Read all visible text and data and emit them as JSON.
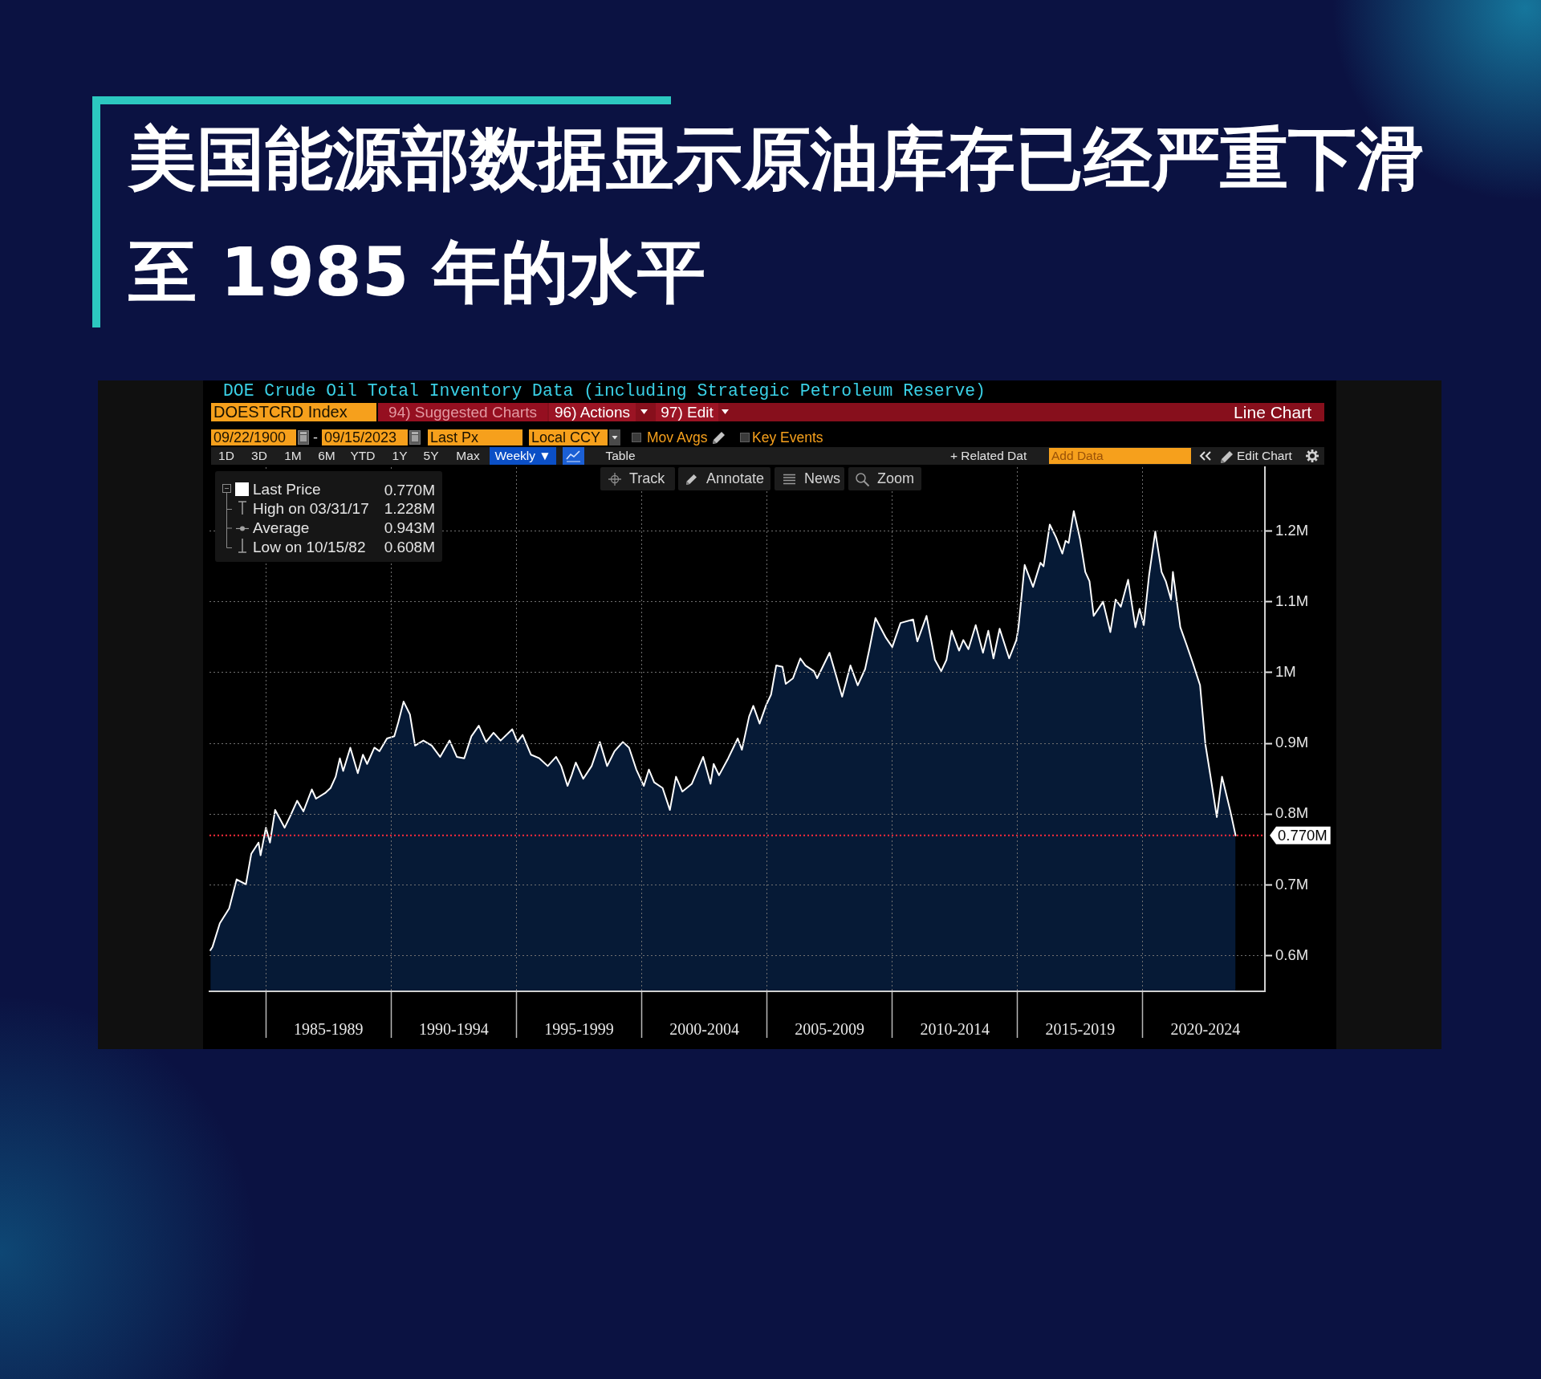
{
  "chart_data": {
    "type": "area",
    "title": "美国能源部数据显示原油库存已经严重下滑至 1985 年的水平",
    "subtitle": "DOE Crude Oil Total Inventory Data (including Strategic Petroleum Reserve)",
    "x": [
      "1982-10-15",
      "1982-11-15",
      "1983-03-01",
      "1983-07-15",
      "1983-11-01",
      "1984-03-15",
      "1984-06-01",
      "1984-09-15",
      "1984-10-15",
      "1985-01-01",
      "1985-03-01",
      "1985-05-15",
      "1985-10-01",
      "1985-12-15",
      "1986-04-01",
      "1986-07-01",
      "1986-11-01",
      "1987-01-01",
      "1987-05-15",
      "1987-08-01",
      "1987-10-15",
      "1987-12-15",
      "1988-02-01",
      "1988-05-15",
      "1988-09-01",
      "1988-11-15",
      "1989-01-15",
      "1989-05-01",
      "1989-07-15",
      "1989-11-01",
      "1990-02-15",
      "1990-04-15",
      "1990-07-01",
      "1990-10-01",
      "1990-12-15",
      "1991-04-15",
      "1991-08-15",
      "1991-12-15",
      "1992-05-01",
      "1992-08-15",
      "1992-12-01",
      "1993-03-15",
      "1993-07-01",
      "1993-10-15",
      "1994-02-01",
      "1994-05-15",
      "1994-11-01",
      "1995-01-15",
      "1995-04-01",
      "1995-08-01",
      "1995-12-01",
      "1996-04-01",
      "1996-08-01",
      "1996-10-15",
      "1997-01-15",
      "1997-03-15",
      "1997-05-15",
      "1997-09-01",
      "1998-01-01",
      "1998-05-01",
      "1998-08-15",
      "1998-12-01",
      "1999-04-01",
      "1999-07-01",
      "1999-10-15",
      "2000-02-01",
      "2000-04-15",
      "2000-07-01",
      "2000-11-01",
      "2001-02-15",
      "2001-05-15",
      "2001-08-15",
      "2002-01-01",
      "2002-06-15",
      "2002-10-01",
      "2002-11-15",
      "2003-02-01",
      "2003-06-15",
      "2003-11-01",
      "2004-01-01",
      "2004-04-15",
      "2004-06-15",
      "2004-09-15",
      "2004-12-15",
      "2005-03-01",
      "2005-05-15",
      "2005-08-15",
      "2005-10-01",
      "2006-01-15",
      "2006-05-01",
      "2006-07-15",
      "2006-11-15",
      "2007-01-01",
      "2007-07-01",
      "2007-10-01",
      "2008-01-01",
      "2008-05-01",
      "2008-08-15",
      "2008-12-01",
      "2009-02-01",
      "2009-05-01",
      "2009-10-01",
      "2010-01-01",
      "2010-05-01",
      "2010-11-01",
      "2011-01-01",
      "2011-05-15",
      "2011-09-15",
      "2011-12-15",
      "2012-03-01",
      "2012-05-15",
      "2012-09-01",
      "2012-11-01",
      "2013-01-15",
      "2013-05-01",
      "2013-08-15",
      "2013-11-01",
      "2014-01-15",
      "2014-04-15",
      "2014-09-01",
      "2014-12-15",
      "2015-01-15",
      "2015-04-15",
      "2015-08-15",
      "2015-12-01",
      "2016-01-15",
      "2016-04-15",
      "2016-07-15",
      "2016-10-15",
      "2016-12-01",
      "2017-01-15",
      "2017-03-31",
      "2017-07-01",
      "2017-09-15",
      "2017-11-15",
      "2018-01-15",
      "2018-06-01",
      "2018-09-15",
      "2018-12-01",
      "2019-02-15",
      "2019-06-01",
      "2019-09-15",
      "2019-11-15",
      "2020-01-15",
      "2020-04-01",
      "2020-07-01",
      "2020-10-01",
      "2020-12-01",
      "2021-02-15",
      "2021-03-15",
      "2021-07-01",
      "2021-10-01",
      "2022-01-01",
      "2022-04-15",
      "2022-07-01",
      "2022-09-15",
      "2022-12-15",
      "2023-03-01",
      "2023-07-01",
      "2023-09-15"
    ],
    "series": [
      {
        "name": "Last Price",
        "color": "#ffffff",
        "values": [
          0.608,
          0.613,
          0.646,
          0.667,
          0.708,
          0.701,
          0.744,
          0.76,
          0.742,
          0.781,
          0.76,
          0.806,
          0.781,
          0.796,
          0.819,
          0.804,
          0.835,
          0.822,
          0.83,
          0.837,
          0.853,
          0.879,
          0.861,
          0.894,
          0.858,
          0.884,
          0.871,
          0.894,
          0.889,
          0.907,
          0.91,
          0.93,
          0.959,
          0.941,
          0.897,
          0.904,
          0.897,
          0.881,
          0.904,
          0.881,
          0.879,
          0.91,
          0.925,
          0.902,
          0.915,
          0.904,
          0.92,
          0.902,
          0.912,
          0.884,
          0.879,
          0.868,
          0.881,
          0.868,
          0.84,
          0.855,
          0.873,
          0.85,
          0.868,
          0.902,
          0.868,
          0.889,
          0.902,
          0.894,
          0.863,
          0.84,
          0.863,
          0.845,
          0.837,
          0.806,
          0.853,
          0.832,
          0.843,
          0.881,
          0.843,
          0.871,
          0.855,
          0.879,
          0.907,
          0.891,
          0.938,
          0.953,
          0.928,
          0.953,
          0.969,
          1.01,
          1.008,
          0.984,
          0.992,
          1.02,
          1.01,
          1.002,
          0.992,
          1.028,
          0.997,
          0.966,
          1.01,
          0.982,
          1.005,
          1.033,
          1.077,
          1.049,
          1.036,
          1.07,
          1.075,
          1.044,
          1.08,
          1.018,
          1.002,
          1.018,
          1.059,
          1.031,
          1.046,
          1.033,
          1.067,
          1.028,
          1.059,
          1.02,
          1.062,
          1.02,
          1.046,
          1.064,
          1.152,
          1.121,
          1.155,
          1.15,
          1.209,
          1.191,
          1.168,
          1.186,
          1.183,
          1.228,
          1.188,
          1.142,
          1.129,
          1.08,
          1.1,
          1.057,
          1.103,
          1.093,
          1.131,
          1.064,
          1.09,
          1.067,
          1.137,
          1.199,
          1.142,
          1.129,
          1.103,
          1.142,
          1.064,
          1.039,
          1.013,
          0.982,
          0.899,
          0.853,
          0.796,
          0.853,
          0.804,
          0.77
        ]
      }
    ],
    "xlim": [
      "1982-10-01",
      "2024-11-15"
    ],
    "xticks": [
      {
        "value": "1985-01-01",
        "label": null
      },
      {
        "value": "1987-07-02",
        "label": "1985-1989"
      },
      {
        "value": "1990-01-01",
        "label": null
      },
      {
        "value": "1992-07-02",
        "label": "1990-1994"
      },
      {
        "value": "1995-01-01",
        "label": null
      },
      {
        "value": "1997-07-02",
        "label": "1995-1999"
      },
      {
        "value": "2000-01-01",
        "label": null
      },
      {
        "value": "2002-07-02",
        "label": "2000-2004"
      },
      {
        "value": "2005-01-01",
        "label": null
      },
      {
        "value": "2007-07-02",
        "label": "2005-2009"
      },
      {
        "value": "2010-01-01",
        "label": null
      },
      {
        "value": "2012-07-02",
        "label": "2010-2014"
      },
      {
        "value": "2015-01-01",
        "label": null
      },
      {
        "value": "2017-07-02",
        "label": "2015-2019"
      },
      {
        "value": "2020-01-01",
        "label": null
      },
      {
        "value": "2022-07-02",
        "label": "2020-2024"
      }
    ],
    "ylim": [
      0.55,
      1.29
    ],
    "yticks": [
      {
        "value": 0.6,
        "label": "0.6M"
      },
      {
        "value": 0.7,
        "label": "0.7M"
      },
      {
        "value": 0.8,
        "label": "0.8M"
      },
      {
        "value": 0.9,
        "label": "0.9M"
      },
      {
        "value": 1,
        "label": "1M"
      },
      {
        "value": 1.1,
        "label": "1.1M"
      },
      {
        "value": 1.2,
        "label": "1.2M"
      }
    ],
    "ref_lines": [
      {
        "axis": "y",
        "value": 0.77,
        "label": "0.770M",
        "color": "#ff2b3b",
        "line_style": "dotted"
      }
    ],
    "grid": true,
    "legend": "top left",
    "annotations": [
      "DOESTCRD Index",
      "94) Suggested Charts",
      "96) Actions",
      "97) Edit",
      "Line Chart",
      "09/22/1900",
      "-",
      "09/15/2023",
      "Last Px",
      "Local CCY",
      "Mov Avgs",
      "Key Events",
      "1D",
      "3D",
      "1M",
      "6M",
      "YTD",
      "1Y",
      "5Y",
      "Max",
      "Weekly ▼",
      "Table",
      "+ Related Dat",
      "Add Data",
      "Edit Chart",
      "Track",
      "Annotate",
      "News",
      "Zoom",
      "0.770M",
      "High on 03/31/17",
      "1.228M",
      "Average",
      "0.943M",
      "Low on 10/15/82",
      "0.608M"
    ]
  }
}
